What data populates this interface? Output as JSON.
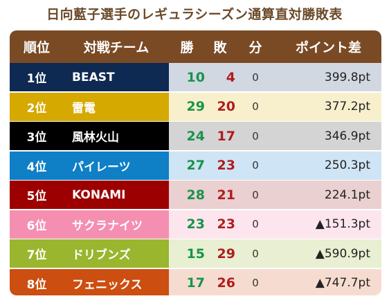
{
  "title": "日向藍子選手のレギュラシーズン通算直対勝敗表",
  "columns": {
    "rank": "順位",
    "team": "対戦チーム",
    "wins": "勝",
    "losses": "敗",
    "draws": "分",
    "points": "ポイント差"
  },
  "rows": [
    {
      "rank": "1位",
      "team": "BEAST",
      "wins": "10",
      "losses": "4",
      "draws": "0",
      "points": "399.8pt",
      "color": "#0e2a52",
      "bg": "#d2d8e2"
    },
    {
      "rank": "2位",
      "team": "雷電",
      "wins": "29",
      "losses": "20",
      "draws": "0",
      "points": "377.2pt",
      "color": "#d6a900",
      "bg": "#f8efcc"
    },
    {
      "rank": "3位",
      "team": "風林火山",
      "wins": "24",
      "losses": "17",
      "draws": "0",
      "points": "346.9pt",
      "color": "#000000",
      "bg": "#d4d4d4"
    },
    {
      "rank": "4位",
      "team": "パイレーツ",
      "wins": "27",
      "losses": "23",
      "draws": "0",
      "points": "250.3pt",
      "color": "#0f7fc6",
      "bg": "#cfe4f4"
    },
    {
      "rank": "5位",
      "team": "KONAMI",
      "wins": "28",
      "losses": "21",
      "draws": "0",
      "points": "224.1pt",
      "color": "#9c0000",
      "bg": "#ead0d0"
    },
    {
      "rank": "6位",
      "team": "サクラナイツ",
      "wins": "23",
      "losses": "23",
      "draws": "0",
      "points": "▲151.3pt",
      "color": "#f48fb1",
      "bg": "#fde5ee"
    },
    {
      "rank": "7位",
      "team": "ドリブンズ",
      "wins": "15",
      "losses": "29",
      "draws": "0",
      "points": "▲590.9pt",
      "color": "#9ab52e",
      "bg": "#e8efd2"
    },
    {
      "rank": "8位",
      "team": "フェニックス",
      "wins": "17",
      "losses": "26",
      "draws": "0",
      "points": "▲747.7pt",
      "color": "#cc4e10",
      "bg": "#f6dcd0"
    }
  ]
}
